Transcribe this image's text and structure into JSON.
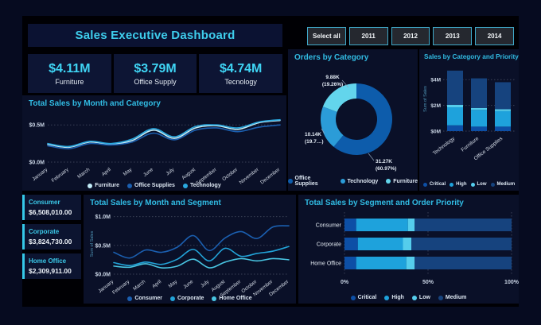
{
  "header": {
    "title": "Sales Executive Dashboard"
  },
  "slicer": {
    "buttons": [
      "Select all",
      "2011",
      "2012",
      "2013",
      "2014"
    ]
  },
  "kpis": [
    {
      "value": "$4.11M",
      "label": "Furniture"
    },
    {
      "value": "$3.79M",
      "label": "Office Supply"
    },
    {
      "value": "$4.74M",
      "label": "Tecnology"
    }
  ],
  "segment_cards": [
    {
      "label": "Consumer",
      "value": "$6,508,010.00"
    },
    {
      "label": "Corporate",
      "value": "$3,824,730.00"
    },
    {
      "label": "Home Office",
      "value": "$2,309,911.00"
    }
  ],
  "colors": {
    "background": "#060b20",
    "canvas": "#000004",
    "panel": "#0a1028",
    "title_cyan": "#31bbe3",
    "kpi_value": "#3fd4f4",
    "text_light": "#e6edf5",
    "grid": "#3a4156",
    "slicer_border": "#3fa9c9",
    "card_accent": "#35c8e8"
  },
  "chart_data": [
    {
      "type": "line",
      "title": "Total Sales by Month and Category",
      "x": [
        "January",
        "February",
        "March",
        "April",
        "May",
        "June",
        "July",
        "August",
        "September",
        "October",
        "November",
        "December"
      ],
      "ylabel": "",
      "ylim": [
        0,
        0.62
      ],
      "yticks": [
        {
          "v": 0,
          "label": "$0.0M"
        },
        {
          "v": 0.5,
          "label": "$0.5M"
        }
      ],
      "grid": "dotted-horizontal",
      "legend_position": "bottom",
      "series": [
        {
          "name": "Furniture",
          "color": "#c3ecf8",
          "values": [
            0.24,
            0.2,
            0.27,
            0.24,
            0.29,
            0.43,
            0.32,
            0.46,
            0.49,
            0.44,
            0.53,
            0.56
          ]
        },
        {
          "name": "Office Supplies",
          "color": "#1b5fb0",
          "values": [
            0.22,
            0.18,
            0.25,
            0.23,
            0.27,
            0.39,
            0.3,
            0.43,
            0.46,
            0.41,
            0.47,
            0.5
          ]
        },
        {
          "name": "Technology",
          "color": "#2aa9e0",
          "values": [
            0.25,
            0.21,
            0.28,
            0.25,
            0.31,
            0.45,
            0.34,
            0.48,
            0.5,
            0.46,
            0.54,
            0.57
          ]
        }
      ]
    },
    {
      "type": "pie",
      "title": "Orders by Category",
      "legend_position": "bottom",
      "slices": [
        {
          "name": "Office Supplies",
          "value_label": "31.27K",
          "pct_label": "(60.97%)",
          "pct": 60.97,
          "color": "#0d5cab"
        },
        {
          "name": "Technology",
          "value_label": "10.14K",
          "pct_label": "(19.7…)",
          "pct": 19.77,
          "color": "#2b9cd8"
        },
        {
          "name": "Furniture",
          "value_label": "9.88K",
          "pct_label": "(19.26%)",
          "pct": 19.26,
          "color": "#63d5ec"
        }
      ],
      "legend": [
        "Office Supplies",
        "Technology",
        "Furniture"
      ]
    },
    {
      "type": "bar",
      "title": "Sales by Category and Priority",
      "ylabel": "Sum of Sales",
      "categories": [
        "Technology",
        "Furniture",
        "Office Supplies"
      ],
      "ylim": [
        0,
        5
      ],
      "yticks": [
        {
          "v": 0,
          "label": "$0M"
        },
        {
          "v": 2,
          "label": "$2M"
        },
        {
          "v": 4,
          "label": "$4M"
        }
      ],
      "grid": "dotted-horizontal",
      "legend_position": "bottom",
      "series": [
        {
          "name": "Critical",
          "color": "#0d4fa6",
          "values": [
            0.45,
            0.35,
            0.35
          ]
        },
        {
          "name": "High",
          "color": "#1ea2dc",
          "values": [
            1.4,
            1.3,
            1.2
          ]
        },
        {
          "name": "Low",
          "color": "#55cdec",
          "values": [
            0.2,
            0.15,
            0.15
          ]
        },
        {
          "name": "Medium",
          "color": "#16437e",
          "values": [
            2.65,
            2.3,
            2.1
          ]
        }
      ]
    },
    {
      "type": "line",
      "title": "Total Sales by Month and Segment",
      "x": [
        "January",
        "February",
        "March",
        "April",
        "May",
        "June",
        "July",
        "August",
        "September",
        "October",
        "November",
        "December"
      ],
      "ylabel": "Sum of Sales",
      "ylim": [
        0,
        1.05
      ],
      "yticks": [
        {
          "v": 0,
          "label": "$0.0M"
        },
        {
          "v": 0.5,
          "label": "$0.5M"
        },
        {
          "v": 1.0,
          "label": "$1.0M"
        }
      ],
      "grid": "dotted-horizontal",
      "legend_position": "bottom",
      "series": [
        {
          "name": "Consumer",
          "color": "#1b5fb0",
          "values": [
            0.38,
            0.28,
            0.42,
            0.38,
            0.47,
            0.67,
            0.41,
            0.63,
            0.74,
            0.62,
            0.82,
            0.84
          ]
        },
        {
          "name": "Corporate",
          "color": "#22a3d8",
          "values": [
            0.2,
            0.15,
            0.21,
            0.17,
            0.26,
            0.43,
            0.23,
            0.45,
            0.31,
            0.36,
            0.4,
            0.48
          ]
        },
        {
          "name": "Home Office",
          "color": "#49c5e2",
          "values": [
            0.14,
            0.12,
            0.18,
            0.11,
            0.14,
            0.26,
            0.11,
            0.21,
            0.27,
            0.23,
            0.27,
            0.25
          ]
        }
      ]
    },
    {
      "type": "bar",
      "subtype": "horizontal-100pct",
      "title": "Total Sales by Segment and Order Priority",
      "categories": [
        "Consumer",
        "Corporate",
        "Home Office"
      ],
      "xlim": [
        0,
        100
      ],
      "xticks": [
        {
          "v": 0,
          "label": "0%"
        },
        {
          "v": 50,
          "label": "50%"
        },
        {
          "v": 100,
          "label": "100%"
        }
      ],
      "legend_position": "bottom",
      "series": [
        {
          "name": "Critical",
          "color": "#0d4fa6",
          "values": [
            7,
            8,
            7
          ]
        },
        {
          "name": "High",
          "color": "#1ea2dc",
          "values": [
            31,
            27,
            30
          ]
        },
        {
          "name": "Low",
          "color": "#55cdec",
          "values": [
            4,
            5,
            5
          ]
        },
        {
          "name": "Medium",
          "color": "#16437e",
          "values": [
            58,
            60,
            58
          ]
        }
      ]
    }
  ]
}
